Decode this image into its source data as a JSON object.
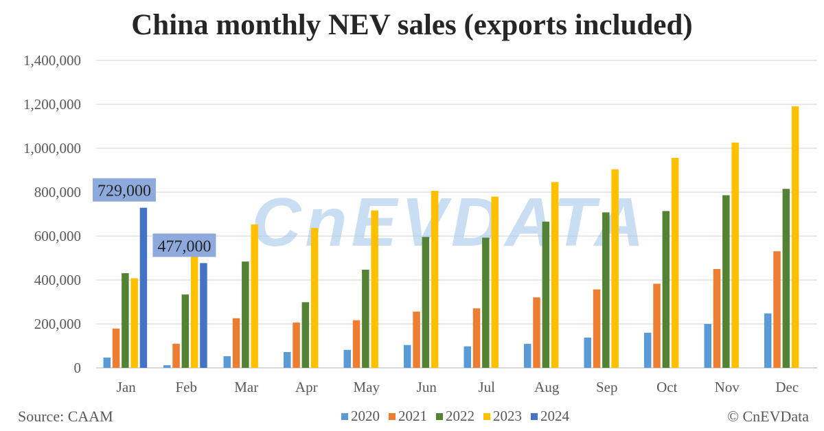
{
  "chart_data": {
    "type": "bar",
    "title": "China monthly NEV sales (exports included)",
    "xlabel": "",
    "ylabel": "",
    "ylim": [
      0,
      1400000
    ],
    "yticks": [
      "0",
      "200,000",
      "400,000",
      "600,000",
      "800,000",
      "1,000,000",
      "1,200,000",
      "1,400,000"
    ],
    "grid": true,
    "legend_position": "bottom",
    "categories": [
      "Jan",
      "Feb",
      "Mar",
      "Apr",
      "May",
      "Jun",
      "Jul",
      "Aug",
      "Sep",
      "Oct",
      "Nov",
      "Dec"
    ],
    "series": [
      {
        "name": "2020",
        "color": "#5B9BD5",
        "values": [
          47000,
          12000,
          53000,
          72000,
          82000,
          104000,
          98000,
          109000,
          138000,
          160000,
          200000,
          248000
        ]
      },
      {
        "name": "2021",
        "color": "#ED7D31",
        "values": [
          179000,
          110000,
          226000,
          206000,
          217000,
          256000,
          271000,
          321000,
          357000,
          383000,
          450000,
          531000
        ]
      },
      {
        "name": "2022",
        "color": "#548235",
        "values": [
          431000,
          334000,
          484000,
          299000,
          447000,
          596000,
          593000,
          666000,
          708000,
          714000,
          786000,
          815000
        ]
      },
      {
        "name": "2023",
        "color": "#FFC000",
        "values": [
          408000,
          525000,
          653000,
          637000,
          717000,
          806000,
          780000,
          846000,
          904000,
          956000,
          1026000,
          1191000
        ]
      },
      {
        "name": "2024",
        "color": "#4472C4",
        "values": [
          729000,
          477000,
          null,
          null,
          null,
          null,
          null,
          null,
          null,
          null,
          null,
          null
        ]
      }
    ],
    "annotations": [
      {
        "category": "Jan",
        "series": "2024",
        "text": "729,000"
      },
      {
        "category": "Feb",
        "series": "2024",
        "text": "477,000"
      }
    ]
  },
  "footer": {
    "source": "Source: CAAM",
    "credit": "© CnEVData"
  },
  "watermark": "CnEVDATA"
}
